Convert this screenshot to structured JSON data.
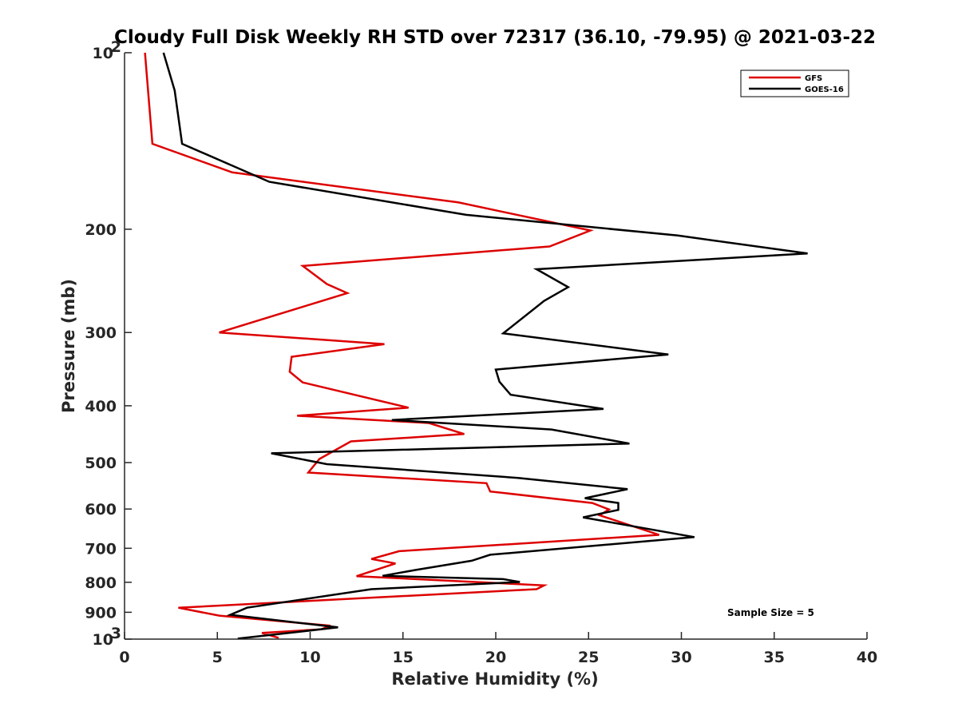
{
  "chart_data": {
    "type": "line",
    "title": "Cloudy Full Disk Weekly RH STD over 72317 (36.10, -79.95) @ 2021-03-22",
    "xlabel": "Relative Humidity (%)",
    "ylabel": "Pressure (mb)",
    "xlim": [
      0,
      40
    ],
    "ylim": [
      100,
      1000
    ],
    "y_scale": "log",
    "y_reversed": true,
    "x_ticks": [
      0,
      5,
      10,
      15,
      20,
      25,
      30,
      35,
      40
    ],
    "y_ticks": [
      {
        "value": 100,
        "label": "10",
        "sup": "2"
      },
      {
        "value": 200,
        "label": "200",
        "sup": ""
      },
      {
        "value": 300,
        "label": "300",
        "sup": ""
      },
      {
        "value": 400,
        "label": "400",
        "sup": ""
      },
      {
        "value": 500,
        "label": "500",
        "sup": ""
      },
      {
        "value": 600,
        "label": "600",
        "sup": ""
      },
      {
        "value": 700,
        "label": "700",
        "sup": ""
      },
      {
        "value": 800,
        "label": "800",
        "sup": ""
      },
      {
        "value": 900,
        "label": "900",
        "sup": ""
      },
      {
        "value": 1000,
        "label": "10",
        "sup": "3"
      }
    ],
    "grid": false,
    "legend_position": "top-right",
    "annotation": "Sample Size = 5",
    "series": [
      {
        "name": "GFS",
        "color": "#dd0000",
        "points": [
          [
            1.1,
            100
          ],
          [
            1.5,
            143
          ],
          [
            5.8,
            160
          ],
          [
            18,
            180
          ],
          [
            25.1,
            201
          ],
          [
            22.9,
            214
          ],
          [
            9.6,
            231
          ],
          [
            10.9,
            248
          ],
          [
            12,
            257
          ],
          [
            5.1,
            300
          ],
          [
            14,
            314
          ],
          [
            9,
            330
          ],
          [
            8.9,
            350
          ],
          [
            9.6,
            365
          ],
          [
            15.3,
            403
          ],
          [
            9.3,
            416
          ],
          [
            16.4,
            428
          ],
          [
            18.3,
            447
          ],
          [
            12.2,
            460
          ],
          [
            10.5,
            493
          ],
          [
            9.9,
            520
          ],
          [
            19.5,
            542
          ],
          [
            19.7,
            560
          ],
          [
            25.2,
            586
          ],
          [
            26.1,
            601
          ],
          [
            25.6,
            615
          ],
          [
            28.8,
            664
          ],
          [
            14.8,
            708
          ],
          [
            13.3,
            730
          ],
          [
            14.6,
            743
          ],
          [
            12.5,
            781
          ],
          [
            22.6,
            810
          ],
          [
            22.2,
            822
          ],
          [
            2.9,
            884
          ],
          [
            5.1,
            912
          ],
          [
            11.1,
            949
          ],
          [
            10.6,
            962
          ],
          [
            7.4,
            976
          ],
          [
            8.3,
            995
          ]
        ]
      },
      {
        "name": "GOES-16",
        "color": "#000000",
        "points": [
          [
            2.1,
            100
          ],
          [
            2.7,
            116
          ],
          [
            3.1,
            143
          ],
          [
            7.8,
            166
          ],
          [
            18.4,
            189
          ],
          [
            29.8,
            205
          ],
          [
            36.8,
            220
          ],
          [
            22.2,
            234
          ],
          [
            23.9,
            251
          ],
          [
            22.6,
            265
          ],
          [
            20.4,
            301
          ],
          [
            29.3,
            327
          ],
          [
            20,
            347
          ],
          [
            20.2,
            364
          ],
          [
            20.8,
            383
          ],
          [
            25.8,
            405
          ],
          [
            14.4,
            423
          ],
          [
            23,
            439
          ],
          [
            27.2,
            464
          ],
          [
            7.9,
            482
          ],
          [
            10.9,
            503
          ],
          [
            21.2,
            531
          ],
          [
            27.1,
            555
          ],
          [
            24.8,
            575
          ],
          [
            26.6,
            586
          ],
          [
            26.6,
            602
          ],
          [
            24.7,
            620
          ],
          [
            30.7,
            670
          ],
          [
            19.7,
            718
          ],
          [
            18.7,
            735
          ],
          [
            15.7,
            762
          ],
          [
            13.9,
            780
          ],
          [
            20.4,
            790
          ],
          [
            21.3,
            799
          ],
          [
            13.3,
            822
          ],
          [
            6.6,
            884
          ],
          [
            5.7,
            909
          ],
          [
            11.5,
            955
          ],
          [
            6.1,
            998
          ]
        ]
      }
    ]
  }
}
